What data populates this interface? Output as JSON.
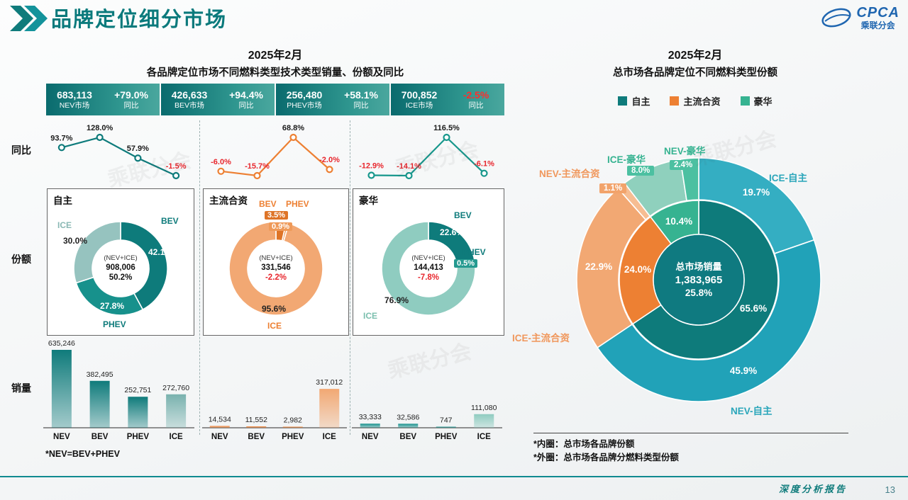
{
  "page": {
    "title": "品牌定位细分市场",
    "page_number": "13",
    "report_label": "深度分析报告",
    "logo_text": "CPCA",
    "logo_subtext": "乘联分会",
    "watermark": "乘联分会"
  },
  "left": {
    "title_line1": "2025年2月",
    "title_line2": "各品牌定位市场不同燃料类型技术类型销量、份额及同比",
    "stats": [
      {
        "value": "683,113",
        "label": "NEV市场",
        "pct": "+79.0%",
        "pct_label": "同比"
      },
      {
        "value": "426,633",
        "label": "BEV市场",
        "pct": "+94.4%",
        "pct_label": "同比"
      },
      {
        "value": "256,480",
        "label": "PHEV市场",
        "pct": "+58.1%",
        "pct_label": "同比"
      },
      {
        "value": "700,852",
        "label": "ICE市场",
        "pct": "-2.5%",
        "pct_label": "同比"
      }
    ],
    "row_labels": [
      "同比",
      "份额",
      "销量"
    ],
    "footnote": "*NEV=BEV+PHEV"
  },
  "right": {
    "title_line1": "2025年2月",
    "title_line2": "总市场各品牌定位不同燃料类型份额",
    "legend": [
      {
        "label": "自主",
        "color": "#0e7b7b"
      },
      {
        "label": "主流合资",
        "color": "#ed8033"
      },
      {
        "label": "豪华",
        "color": "#36b391"
      }
    ],
    "footnote1": "*内圈：总市场各品牌份额",
    "footnote2": "*外圈：总市场各品牌分燃料类型份额"
  },
  "chart_data": {
    "yoy_lines": [
      {
        "type": "line",
        "name": "自主",
        "color": "#0e7b7b",
        "categories": [
          "NEV",
          "BEV",
          "PHEV",
          "ICE"
        ],
        "values": [
          93.7,
          128.0,
          57.9,
          -1.5
        ],
        "labels": [
          "93.7%",
          "128.0%",
          "57.9%",
          "-1.5%"
        ]
      },
      {
        "type": "line",
        "name": "主流合资",
        "color": "#ed8033",
        "categories": [
          "NEV",
          "BEV",
          "PHEV",
          "ICE"
        ],
        "values": [
          -6.0,
          -15.7,
          68.8,
          -2.0
        ],
        "labels": [
          "-6.0%",
          "-15.7%",
          "68.8%",
          "-2.0%"
        ]
      },
      {
        "type": "line",
        "name": "豪华",
        "color": "#17978c",
        "categories": [
          "NEV",
          "BEV",
          "PHEV",
          "ICE"
        ],
        "values": [
          -12.9,
          -14.1,
          116.5,
          -6.1
        ],
        "labels": [
          "-12.9%",
          "-14.1%",
          "116.5%",
          "-6.1%"
        ]
      }
    ],
    "share_donuts": [
      {
        "type": "pie",
        "name": "自主",
        "center": [
          "(NEV+ICE)",
          "908,006",
          "50.2%"
        ],
        "segments": [
          {
            "label": "BEV",
            "value": 42.1,
            "pct_label": "42.1%",
            "color": "#0e7b7b"
          },
          {
            "label": "PHEV",
            "value": 27.8,
            "pct_label": "27.8%",
            "color": "#17918c"
          },
          {
            "label": "ICE",
            "value": 30.0,
            "pct_label": "30.0%",
            "color": "#96c3bf"
          }
        ]
      },
      {
        "type": "pie",
        "name": "主流合资",
        "center": [
          "(NEV+ICE)",
          "331,546",
          "-2.2%"
        ],
        "segments": [
          {
            "label": "BEV",
            "value": 3.5,
            "pct_label": "3.5%",
            "color": "#de7427"
          },
          {
            "label": "PHEV",
            "value": 0.9,
            "pct_label": "0.9%",
            "color": "#ef9a59"
          },
          {
            "label": "ICE",
            "value": 95.6,
            "pct_label": "95.6%",
            "color": "#f2a873"
          }
        ]
      },
      {
        "type": "pie",
        "name": "豪华",
        "center": [
          "(NEV+ICE)",
          "144,413",
          "-7.8%"
        ],
        "segments": [
          {
            "label": "BEV",
            "value": 22.6,
            "pct_label": "22.6%",
            "color": "#0e7b7b"
          },
          {
            "label": "PHEV",
            "value": 0.5,
            "pct_label": "0.5%",
            "color": "#259a90"
          },
          {
            "label": "ICE",
            "value": 76.9,
            "pct_label": "76.9%",
            "color": "#8fccc0"
          }
        ]
      }
    ],
    "sales_bars": [
      {
        "type": "bar",
        "name": "自主",
        "categories": [
          "NEV",
          "BEV",
          "PHEV",
          "ICE"
        ],
        "values": [
          635246,
          382495,
          252751,
          272760
        ],
        "value_labels": [
          "635,246",
          "382,495",
          "252,751",
          "272,760"
        ],
        "colors": [
          "#0f7b7b",
          "#0f7b7b",
          "#0f7b7b",
          "#79b2ae"
        ],
        "ylim": [
          0,
          650000
        ]
      },
      {
        "type": "bar",
        "name": "主流合资",
        "categories": [
          "NEV",
          "BEV",
          "PHEV",
          "ICE"
        ],
        "values": [
          14534,
          11552,
          2982,
          317012
        ],
        "value_labels": [
          "14,534",
          "11,552",
          "2,982",
          "317,012"
        ],
        "colors": [
          "#ed8033",
          "#ed8033",
          "#ed8033",
          "#f2a873"
        ],
        "ylim": [
          0,
          650000
        ]
      },
      {
        "type": "bar",
        "name": "豪华",
        "categories": [
          "NEV",
          "BEV",
          "PHEV",
          "ICE"
        ],
        "values": [
          33333,
          32586,
          747,
          111080
        ],
        "value_labels": [
          "33,333",
          "32,586",
          "747",
          "111,080"
        ],
        "colors": [
          "#17918c",
          "#17918c",
          "#17918c",
          "#8fccc0"
        ],
        "ylim": [
          0,
          650000
        ]
      }
    ],
    "market_donut": {
      "type": "pie",
      "title": "总市场各品牌定位不同燃料类型份额",
      "center": [
        "总市场销量",
        "1,383,965",
        "25.8%"
      ],
      "center_color": "#0f7a80",
      "inner": [
        {
          "label": "自主",
          "value": 65.6,
          "pct_label": "65.6%",
          "color": "#0e7b7b"
        },
        {
          "label": "主流合资",
          "value": 24.0,
          "pct_label": "24.0%",
          "color": "#ed8033"
        },
        {
          "label": "豪华",
          "value": 10.4,
          "pct_label": "10.4%",
          "color": "#36b391"
        }
      ],
      "outer": [
        {
          "label": "ICE-自主",
          "value": 19.7,
          "pct_label": "19.7%",
          "color": "#34aec2"
        },
        {
          "label": "NEV-自主",
          "value": 45.9,
          "pct_label": "45.9%",
          "color": "#21a2b8"
        },
        {
          "label": "ICE-主流合资",
          "value": 22.9,
          "pct_label": "22.9%",
          "color": "#f2a873"
        },
        {
          "label": "NEV-主流合资",
          "value": 1.1,
          "pct_label": "1.1%",
          "color": "#f6bd92"
        },
        {
          "label": "ICE-豪华",
          "value": 8.0,
          "pct_label": "8.0%",
          "color": "#8fd0bd"
        },
        {
          "label": "NEV-豪华",
          "value": 2.4,
          "pct_label": "2.4%",
          "color": "#4cc0a1"
        }
      ]
    }
  }
}
